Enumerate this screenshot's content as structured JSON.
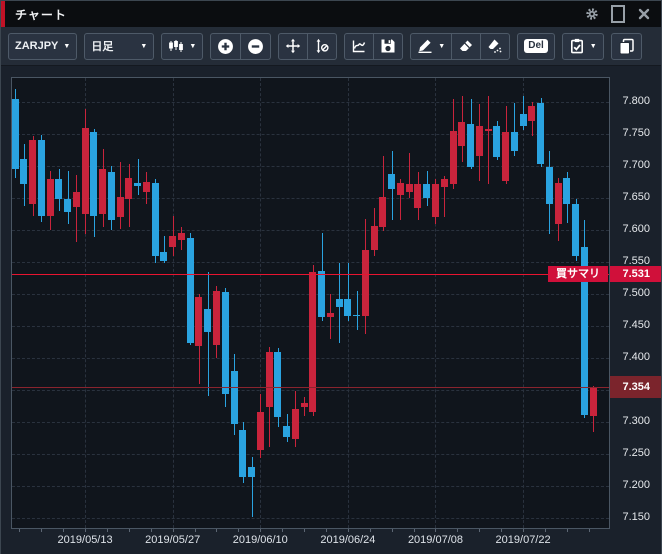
{
  "window": {
    "title": "チャート",
    "titlebar_icons": [
      "settings-gear-icon",
      "maximize-icon",
      "close-icon"
    ]
  },
  "toolbar": {
    "groups": [
      {
        "items": [
          {
            "name": "symbol-select",
            "label": "ZARJPY",
            "caret": true
          }
        ]
      },
      {
        "items": [
          {
            "name": "timeframe-select",
            "label": "日足",
            "caret": true,
            "wide": true
          }
        ]
      },
      {
        "items": [
          {
            "name": "chart-type-select",
            "icon": "candlestick-icon",
            "caret": true
          }
        ]
      },
      {
        "items": [
          {
            "name": "zoom-in-button",
            "icon": "zoom-in-icon"
          },
          {
            "name": "zoom-out-button",
            "icon": "zoom-out-icon"
          }
        ]
      },
      {
        "items": [
          {
            "name": "pan-button",
            "icon": "move-icon"
          },
          {
            "name": "axis-scale-reset-button",
            "icon": "axis-reset-icon"
          }
        ]
      },
      {
        "items": [
          {
            "name": "freehand-line-button",
            "icon": "squiggle-axis-icon"
          },
          {
            "name": "save-button",
            "icon": "save-icon"
          }
        ]
      },
      {
        "items": [
          {
            "name": "draw-line-button",
            "icon": "pencil-icon",
            "caret": true
          },
          {
            "name": "eraser-button",
            "icon": "eraser-icon"
          },
          {
            "name": "erase-all-button",
            "icon": "eraser-all-icon"
          }
        ]
      },
      {
        "items": [
          {
            "name": "delete-button",
            "del_label": "Del"
          }
        ]
      },
      {
        "items": [
          {
            "name": "order-settings-button",
            "icon": "clipboard-check-icon",
            "caret": true
          }
        ]
      },
      {
        "items": [
          {
            "name": "copy-chart-button",
            "icon": "copy-icon"
          }
        ]
      }
    ]
  },
  "colors": {
    "up": "#c9243c",
    "down": "#2aa3e0",
    "grid": "#2a323e",
    "plot_border": "#4a5663",
    "plot_bg": "#10151c",
    "panel_bg": "#1a212b",
    "toolbar_bg": "#242c37",
    "titlebar_bg": "#0b0d10",
    "accent_red": "#c01226",
    "buy_line": "#e81430",
    "buy_badge_bg": "#d0103a",
    "current_line": "#8a242e",
    "current_badge_bg": "#7b242c"
  },
  "chart_data": {
    "type": "candlestick",
    "symbol": "ZARJPY",
    "timeframe": "日足",
    "title": "チャート",
    "grid": true,
    "y_axis": {
      "min": 7.15,
      "max": 7.8,
      "grid_step": 0.05,
      "tick_labels": [
        "7.800",
        "7.750",
        "7.700",
        "7.650",
        "7.600",
        "7.550",
        "7.500",
        "7.450",
        "7.400",
        "7.300",
        "7.250",
        "7.200",
        "7.150"
      ]
    },
    "x_axis": {
      "tick_labels": [
        {
          "label": "2019/05/13",
          "candle_index": 8
        },
        {
          "label": "2019/05/27",
          "candle_index": 18
        },
        {
          "label": "2019/06/10",
          "candle_index": 28
        },
        {
          "label": "2019/06/24",
          "candle_index": 38
        },
        {
          "label": "2019/07/08",
          "candle_index": 48
        },
        {
          "label": "2019/07/22",
          "candle_index": 58
        }
      ]
    },
    "lines": {
      "buy_summary": {
        "label": "買サマリ",
        "price": 7.531,
        "price_label": "7.531"
      },
      "current_price": {
        "price": 7.354,
        "price_label": "7.354"
      }
    },
    "candles_format": [
      "date",
      "open",
      "high",
      "low",
      "close"
    ],
    "candles": [
      [
        "2019/05/01",
        7.805,
        7.82,
        7.682,
        7.695
      ],
      [
        "2019/05/02",
        7.711,
        7.734,
        7.638,
        7.672
      ],
      [
        "2019/05/03",
        7.64,
        7.747,
        7.622,
        7.74
      ],
      [
        "2019/05/06",
        7.74,
        7.748,
        7.612,
        7.622
      ],
      [
        "2019/05/07",
        7.622,
        7.692,
        7.6,
        7.68
      ],
      [
        "2019/05/08",
        7.68,
        7.695,
        7.63,
        7.648
      ],
      [
        "2019/05/09",
        7.648,
        7.692,
        7.61,
        7.628
      ],
      [
        "2019/05/10",
        7.636,
        7.686,
        7.582,
        7.66
      ],
      [
        "2019/05/13",
        7.625,
        7.789,
        7.594,
        7.76
      ],
      [
        "2019/05/14",
        7.753,
        7.758,
        7.589,
        7.622
      ],
      [
        "2019/05/15",
        7.625,
        7.727,
        7.604,
        7.695
      ],
      [
        "2019/05/16",
        7.69,
        7.7,
        7.6,
        7.615
      ],
      [
        "2019/05/17",
        7.62,
        7.706,
        7.602,
        7.651
      ],
      [
        "2019/05/20",
        7.648,
        7.703,
        7.604,
        7.682
      ],
      [
        "2019/05/21",
        7.673,
        7.711,
        7.654,
        7.668
      ],
      [
        "2019/05/22",
        7.66,
        7.69,
        7.64,
        7.675
      ],
      [
        "2019/05/23",
        7.674,
        7.68,
        7.549,
        7.56
      ],
      [
        "2019/05/24",
        7.565,
        7.59,
        7.548,
        7.552
      ],
      [
        "2019/05/27",
        7.573,
        7.622,
        7.56,
        7.591
      ],
      [
        "2019/05/28",
        7.585,
        7.605,
        7.568,
        7.595
      ],
      [
        "2019/05/29",
        7.588,
        7.595,
        7.42,
        7.424
      ],
      [
        "2019/05/30",
        7.419,
        7.5,
        7.36,
        7.495
      ],
      [
        "2019/05/31",
        7.477,
        7.534,
        7.341,
        7.44
      ],
      [
        "2019/06/03",
        7.42,
        7.512,
        7.4,
        7.505
      ],
      [
        "2019/06/04",
        7.503,
        7.51,
        7.323,
        7.343
      ],
      [
        "2019/06/05",
        7.379,
        7.406,
        7.279,
        7.297
      ],
      [
        "2019/06/06",
        7.287,
        7.3,
        7.204,
        7.214
      ],
      [
        "2019/06/07",
        7.23,
        7.245,
        7.152,
        7.214
      ],
      [
        "2019/06/10",
        7.256,
        7.344,
        7.243,
        7.316
      ],
      [
        "2019/06/11",
        7.323,
        7.417,
        7.261,
        7.409
      ],
      [
        "2019/06/12",
        7.409,
        7.415,
        7.292,
        7.308
      ],
      [
        "2019/06/13",
        7.294,
        7.312,
        7.269,
        7.277
      ],
      [
        "2019/06/14",
        7.274,
        7.348,
        7.261,
        7.321
      ],
      [
        "2019/06/17",
        7.324,
        7.339,
        7.31,
        7.329
      ],
      [
        "2019/06/18",
        7.316,
        7.545,
        7.31,
        7.535
      ],
      [
        "2019/06/19",
        7.536,
        7.596,
        7.458,
        7.464
      ],
      [
        "2019/06/20",
        7.464,
        7.5,
        7.43,
        7.47
      ],
      [
        "2019/06/21",
        7.492,
        7.549,
        7.424,
        7.479
      ],
      [
        "2019/06/24",
        7.492,
        7.549,
        7.458,
        7.466
      ],
      [
        "2019/06/25",
        7.467,
        7.505,
        7.443,
        7.466
      ],
      [
        "2019/06/26",
        7.466,
        7.617,
        7.438,
        7.568
      ],
      [
        "2019/06/27",
        7.568,
        7.635,
        7.56,
        7.607
      ],
      [
        "2019/06/28",
        7.604,
        7.716,
        7.598,
        7.651
      ],
      [
        "2019/07/01",
        7.687,
        7.724,
        7.615,
        7.664
      ],
      [
        "2019/07/02",
        7.654,
        7.68,
        7.615,
        7.674
      ],
      [
        "2019/07/03",
        7.659,
        7.721,
        7.65,
        7.672
      ],
      [
        "2019/07/04",
        7.634,
        7.69,
        7.616,
        7.672
      ],
      [
        "2019/07/05",
        7.672,
        7.692,
        7.638,
        7.65
      ],
      [
        "2019/07/08",
        7.62,
        7.68,
        7.61,
        7.672
      ],
      [
        "2019/07/09",
        7.667,
        7.685,
        7.62,
        7.68
      ],
      [
        "2019/07/10",
        7.672,
        7.805,
        7.664,
        7.755
      ],
      [
        "2019/07/11",
        7.732,
        7.81,
        7.706,
        7.768
      ],
      [
        "2019/07/12",
        7.766,
        7.805,
        7.695,
        7.698
      ],
      [
        "2019/07/15",
        7.716,
        7.797,
        7.677,
        7.763
      ],
      [
        "2019/07/16",
        7.755,
        7.81,
        7.672,
        7.758
      ],
      [
        "2019/07/17",
        7.763,
        7.77,
        7.709,
        7.714
      ],
      [
        "2019/07/18",
        7.677,
        7.794,
        7.672,
        7.753
      ],
      [
        "2019/07/19",
        7.753,
        7.799,
        7.716,
        7.724
      ],
      [
        "2019/07/22",
        7.781,
        7.81,
        7.757,
        7.763
      ],
      [
        "2019/07/23",
        7.771,
        7.8,
        7.747,
        7.794
      ],
      [
        "2019/07/24",
        7.799,
        7.807,
        7.698,
        7.703
      ],
      [
        "2019/07/25",
        7.698,
        7.724,
        7.594,
        7.64
      ],
      [
        "2019/07/26",
        7.609,
        7.682,
        7.583,
        7.674
      ],
      [
        "2019/07/29",
        7.682,
        7.69,
        7.611,
        7.64
      ],
      [
        "2019/07/30",
        7.64,
        7.648,
        7.552,
        7.56
      ],
      [
        "2019/07/31",
        7.573,
        7.615,
        7.306,
        7.311
      ],
      [
        "2019/08/01",
        7.309,
        7.356,
        7.285,
        7.354
      ]
    ]
  }
}
